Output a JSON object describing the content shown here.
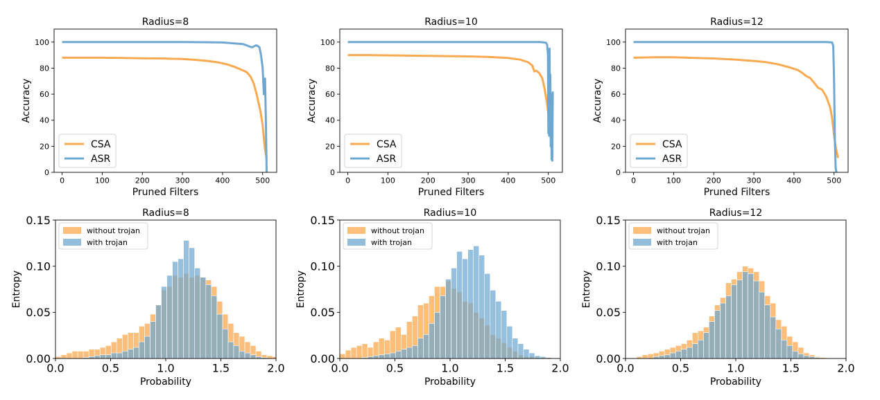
{
  "colors": {
    "csa": "#f9a94f",
    "asr": "#6ea8d0",
    "without": "#f9a94f",
    "with": "#6ea8d0"
  },
  "chart_data": [
    {
      "type": "line",
      "title": "Radius=8",
      "xlabel": "Pruned Filters",
      "ylabel": "Accuracy",
      "xlim": [
        -20,
        535
      ],
      "ylim": [
        0,
        110
      ],
      "xticks": [
        0,
        100,
        200,
        300,
        400,
        500
      ],
      "yticks": [
        0,
        20,
        40,
        60,
        80,
        100
      ],
      "legend": "lower-left",
      "grid": false,
      "series": [
        {
          "name": "CSA",
          "x": [
            0,
            50,
            100,
            150,
            200,
            250,
            300,
            330,
            360,
            390,
            410,
            430,
            445,
            460,
            470,
            478,
            485,
            490,
            495,
            500,
            505,
            510
          ],
          "y": [
            88,
            88,
            88,
            87.8,
            87.6,
            87.4,
            87,
            86.4,
            85.6,
            84.4,
            83,
            81,
            79,
            77,
            73.5,
            68,
            60,
            53,
            46,
            36,
            20,
            10
          ]
        },
        {
          "name": "ASR",
          "x": [
            0,
            100,
            200,
            300,
            350,
            400,
            430,
            450,
            460,
            468,
            474,
            480,
            484,
            488,
            492,
            496,
            500,
            503,
            506,
            508,
            510
          ],
          "y": [
            100,
            100,
            100,
            100,
            99.9,
            99.7,
            99,
            98.5,
            97.5,
            96.5,
            96,
            97,
            97.5,
            97,
            96,
            90,
            80,
            60,
            72,
            40,
            0
          ]
        }
      ]
    },
    {
      "type": "line",
      "title": "Radius=10",
      "xlabel": "Pruned Filters",
      "ylabel": "Accuracy",
      "xlim": [
        -20,
        535
      ],
      "ylim": [
        0,
        110
      ],
      "xticks": [
        0,
        100,
        200,
        300,
        400,
        500
      ],
      "yticks": [
        0,
        20,
        40,
        60,
        80,
        100
      ],
      "legend": "lower-left",
      "grid": false,
      "series": [
        {
          "name": "CSA",
          "x": [
            0,
            50,
            100,
            150,
            200,
            250,
            300,
            350,
            400,
            430,
            450,
            460,
            465,
            470,
            478,
            485,
            490,
            494,
            498,
            502
          ],
          "y": [
            90,
            90,
            89.8,
            89.6,
            89.4,
            89.2,
            89,
            88.6,
            87.8,
            86.5,
            84.5,
            82,
            77.5,
            78,
            76,
            72,
            65,
            58,
            50,
            40
          ]
        },
        {
          "name": "ASR",
          "x": [
            0,
            100,
            200,
            300,
            400,
            480,
            494,
            497,
            499,
            500,
            501,
            502,
            503,
            504,
            505,
            506,
            507,
            508,
            509,
            510,
            511
          ],
          "y": [
            100,
            100,
            100,
            100,
            100,
            100,
            99.5,
            98,
            90,
            30,
            85,
            28,
            95,
            40,
            75,
            20,
            60,
            10,
            55,
            9,
            62
          ]
        }
      ]
    },
    {
      "type": "line",
      "title": "Radius=12",
      "xlabel": "Pruned Filters",
      "ylabel": "Accuracy",
      "xlim": [
        -20,
        535
      ],
      "ylim": [
        0,
        110
      ],
      "xticks": [
        0,
        100,
        200,
        300,
        400,
        500
      ],
      "yticks": [
        0,
        20,
        40,
        60,
        80,
        100
      ],
      "legend": "lower-left",
      "grid": false,
      "series": [
        {
          "name": "CSA",
          "x": [
            0,
            50,
            100,
            150,
            200,
            250,
            280,
            300,
            330,
            360,
            390,
            410,
            420,
            430,
            440,
            450,
            460,
            470,
            480,
            490,
            495,
            500,
            505,
            510
          ],
          "y": [
            88,
            88.3,
            88.3,
            87.9,
            87.4,
            86.6,
            86,
            85.5,
            84.6,
            83,
            80.5,
            78.5,
            76.5,
            74,
            72.5,
            69,
            65,
            63.5,
            58.5,
            50,
            42,
            28,
            18,
            11
          ]
        },
        {
          "name": "ASR",
          "x": [
            0,
            100,
            200,
            300,
            400,
            480,
            495,
            498,
            500,
            502,
            504,
            506
          ],
          "y": [
            100,
            100,
            100,
            100,
            100,
            100,
            99.8,
            97,
            70,
            25,
            3,
            0
          ]
        }
      ]
    },
    {
      "type": "bar",
      "title": "Radius=8",
      "xlabel": "Probability",
      "ylabel": "Entropy",
      "xlim": [
        0.0,
        2.0
      ],
      "ylim": [
        0,
        0.15
      ],
      "xticks": [
        "0.0",
        "0.5",
        "1.0",
        "1.5",
        "2.0"
      ],
      "yticks": [
        "0.00",
        "0.05",
        "0.10",
        "0.15"
      ],
      "legend": "top-left",
      "grid": false,
      "bin_start": 0.0,
      "bin_width": 0.0505,
      "series": [
        {
          "name": "without trojan",
          "values": [
            0.002,
            0.004,
            0.006,
            0.008,
            0.008,
            0.008,
            0.01,
            0.01,
            0.012,
            0.014,
            0.018,
            0.022,
            0.026,
            0.028,
            0.028,
            0.035,
            0.038,
            0.048,
            0.058,
            0.074,
            0.078,
            0.09,
            0.088,
            0.092,
            0.088,
            0.09,
            0.088,
            0.085,
            0.078,
            0.062,
            0.048,
            0.038,
            0.028,
            0.024,
            0.018,
            0.014,
            0.008,
            0.004,
            0.003,
            0.002
          ]
        },
        {
          "name": "with trojan",
          "values": [
            0,
            0,
            0,
            0,
            0,
            0.001,
            0.002,
            0.003,
            0.004,
            0.004,
            0.006,
            0.006,
            0.008,
            0.01,
            0.012,
            0.018,
            0.024,
            0.04,
            0.058,
            0.078,
            0.09,
            0.105,
            0.108,
            0.128,
            0.12,
            0.098,
            0.088,
            0.08,
            0.068,
            0.048,
            0.032,
            0.018,
            0.014,
            0.008,
            0.006,
            0.004,
            0.002,
            0.001,
            0,
            0
          ]
        }
      ]
    },
    {
      "type": "bar",
      "title": "Radius=10",
      "xlabel": "Probability",
      "ylabel": "Entropy",
      "xlim": [
        0.0,
        2.0
      ],
      "ylim": [
        0,
        0.15
      ],
      "xticks": [
        "0.0",
        "0.5",
        "1.0",
        "1.5",
        "2.0"
      ],
      "yticks": [
        "0.00",
        "0.05",
        "0.10",
        "0.15"
      ],
      "legend": "top-left",
      "grid": false,
      "bin_start": 0.0,
      "bin_width": 0.0505,
      "series": [
        {
          "name": "without trojan",
          "values": [
            0.005,
            0.009,
            0.012,
            0.014,
            0.016,
            0.012,
            0.018,
            0.022,
            0.02,
            0.03,
            0.034,
            0.026,
            0.04,
            0.046,
            0.058,
            0.06,
            0.068,
            0.078,
            0.078,
            0.084,
            0.076,
            0.072,
            0.062,
            0.06,
            0.05,
            0.044,
            0.036,
            0.026,
            0.022,
            0.017,
            0.012,
            0.008,
            0.004,
            0.002,
            0.002,
            0.001,
            0.001,
            0.001,
            0,
            0
          ]
        },
        {
          "name": "with trojan",
          "values": [
            0,
            0,
            0,
            0,
            0.001,
            0.002,
            0.003,
            0.004,
            0.005,
            0.006,
            0.008,
            0.01,
            0.012,
            0.014,
            0.022,
            0.026,
            0.038,
            0.05,
            0.068,
            0.086,
            0.098,
            0.116,
            0.108,
            0.118,
            0.122,
            0.112,
            0.092,
            0.074,
            0.062,
            0.052,
            0.035,
            0.022,
            0.016,
            0.01,
            0.006,
            0.003,
            0.002,
            0.001,
            0,
            0
          ]
        }
      ]
    },
    {
      "type": "bar",
      "title": "Radius=12",
      "xlabel": "Probability",
      "ylabel": "Entropy",
      "xlim": [
        0.0,
        2.0
      ],
      "ylim": [
        0,
        0.15
      ],
      "xticks": [
        "0.0",
        "0.5",
        "1.0",
        "1.5",
        "2.0"
      ],
      "yticks": [
        "0.00",
        "0.05",
        "0.10",
        "0.15"
      ],
      "legend": "top-left",
      "grid": false,
      "bin_start": 0.0,
      "bin_width": 0.0505,
      "series": [
        {
          "name": "without trojan",
          "values": [
            0,
            0,
            0.002,
            0.004,
            0.005,
            0.006,
            0.008,
            0.01,
            0.012,
            0.014,
            0.016,
            0.02,
            0.028,
            0.03,
            0.034,
            0.046,
            0.058,
            0.066,
            0.082,
            0.086,
            0.094,
            0.1,
            0.098,
            0.094,
            0.084,
            0.068,
            0.06,
            0.042,
            0.035,
            0.024,
            0.018,
            0.012,
            0.006,
            0.004,
            0.002,
            0.001,
            0,
            0,
            0,
            0
          ]
        },
        {
          "name": "with trojan",
          "values": [
            0,
            0,
            0,
            0,
            0,
            0.002,
            0.003,
            0.004,
            0.006,
            0.008,
            0.01,
            0.012,
            0.016,
            0.02,
            0.028,
            0.04,
            0.052,
            0.06,
            0.068,
            0.08,
            0.085,
            0.094,
            0.092,
            0.084,
            0.072,
            0.058,
            0.045,
            0.032,
            0.02,
            0.014,
            0.008,
            0.005,
            0.003,
            0.002,
            0.001,
            0,
            0,
            0,
            0,
            0
          ]
        }
      ]
    }
  ]
}
